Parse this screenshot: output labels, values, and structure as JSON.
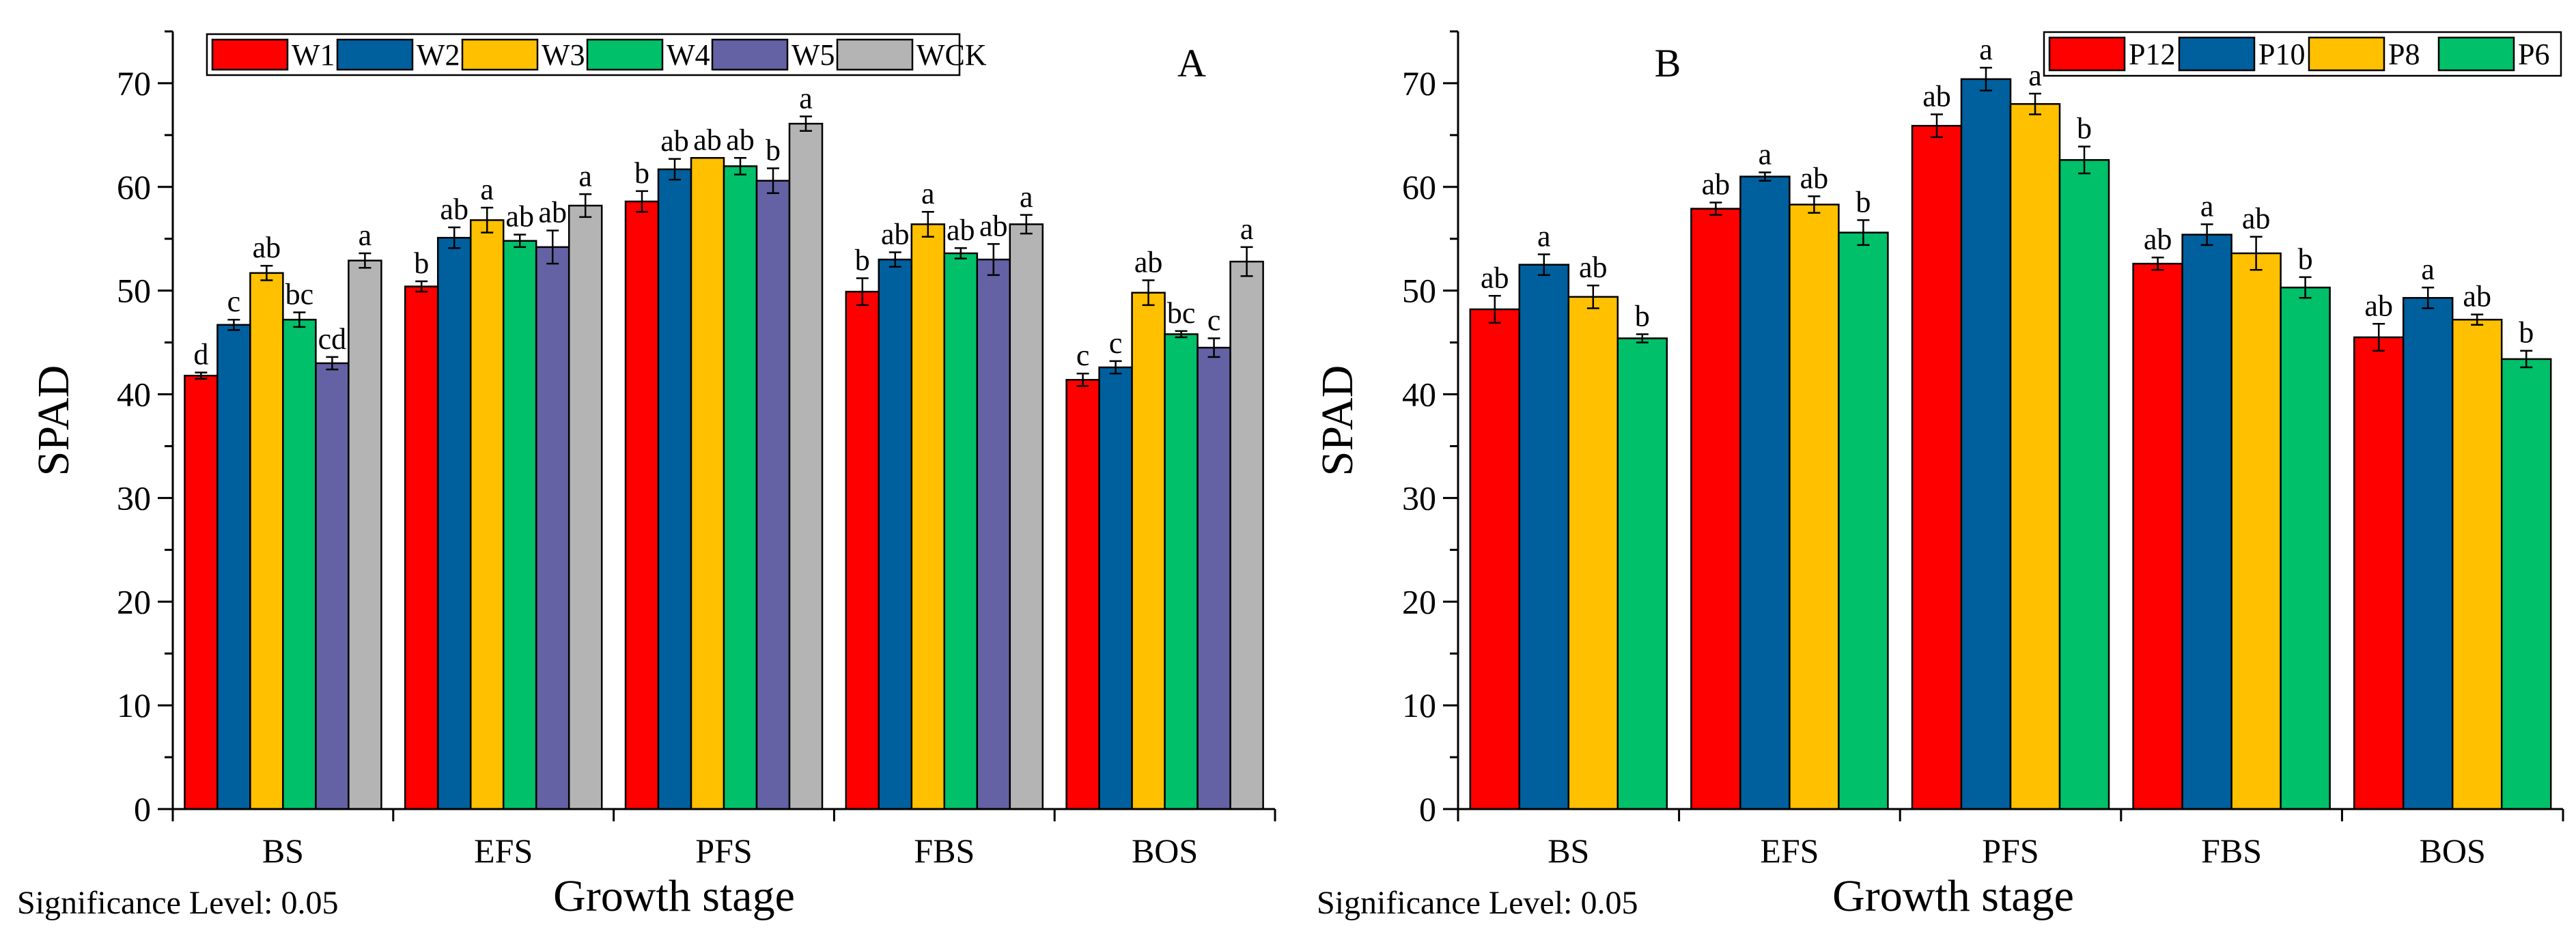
{
  "significance_note": "Significance Level: 0.05",
  "chart_data": [
    {
      "panel": "A",
      "type": "bar",
      "xlabel": "Growth stage",
      "ylabel": "SPAD",
      "ylim": [
        0,
        75
      ],
      "yticks": [
        0,
        10,
        20,
        30,
        40,
        50,
        60,
        70
      ],
      "categories": [
        "BS",
        "EFS",
        "PFS",
        "FBS",
        "BOS"
      ],
      "legend_position": "top-left",
      "grid": false,
      "series": [
        {
          "name": "W1",
          "color": "#ff0000",
          "values": [
            41.8,
            50.4,
            58.6,
            49.9,
            41.4
          ],
          "errors": [
            0.3,
            0.5,
            1.0,
            1.3,
            0.6
          ],
          "letters": [
            "d",
            "b",
            "b",
            "b",
            "c"
          ]
        },
        {
          "name": "W2",
          "color": "#00609e",
          "values": [
            46.7,
            55.1,
            61.7,
            53.0,
            42.6
          ],
          "errors": [
            0.5,
            1.0,
            1.0,
            0.7,
            0.6
          ],
          "letters": [
            "c",
            "ab",
            "ab",
            "ab",
            "c"
          ]
        },
        {
          "name": "W3",
          "color": "#ffc000",
          "values": [
            51.7,
            56.8,
            62.8,
            56.4,
            49.8
          ],
          "errors": [
            0.7,
            1.2,
            0.0,
            1.2,
            1.2
          ],
          "letters": [
            "ab",
            "a",
            "ab",
            "a",
            "ab"
          ]
        },
        {
          "name": "W4",
          "color": "#00c06a",
          "values": [
            47.2,
            54.8,
            62.0,
            53.6,
            45.8
          ],
          "errors": [
            0.7,
            0.6,
            0.8,
            0.5,
            0.3
          ],
          "letters": [
            "bc",
            "ab",
            "ab",
            "ab",
            "bc"
          ]
        },
        {
          "name": "W5",
          "color": "#6462a4",
          "values": [
            43.0,
            54.2,
            60.6,
            53.0,
            44.5
          ],
          "errors": [
            0.6,
            1.6,
            1.2,
            1.5,
            0.9
          ],
          "letters": [
            "cd",
            "ab",
            "b",
            "ab",
            "c"
          ]
        },
        {
          "name": "WCK",
          "color": "#b4b4b4",
          "values": [
            52.9,
            58.2,
            66.1,
            56.4,
            52.8
          ],
          "errors": [
            0.7,
            1.1,
            0.7,
            0.9,
            1.4
          ],
          "letters": [
            "a",
            "a",
            "a",
            "a",
            "a"
          ]
        }
      ]
    },
    {
      "panel": "B",
      "type": "bar",
      "xlabel": "Growth stage",
      "ylabel": "SPAD",
      "ylim": [
        0,
        75
      ],
      "yticks": [
        0,
        10,
        20,
        30,
        40,
        50,
        60,
        70
      ],
      "categories": [
        "BS",
        "EFS",
        "PFS",
        "FBS",
        "BOS"
      ],
      "legend_position": "top-right",
      "grid": false,
      "series": [
        {
          "name": "P12",
          "color": "#ff0000",
          "values": [
            48.2,
            57.9,
            65.9,
            52.6,
            45.5
          ],
          "errors": [
            1.3,
            0.6,
            1.1,
            0.6,
            1.3
          ],
          "letters": [
            "ab",
            "ab",
            "ab",
            "ab",
            "ab"
          ]
        },
        {
          "name": "P10",
          "color": "#00609e",
          "values": [
            52.5,
            61.0,
            70.4,
            55.4,
            49.3
          ],
          "errors": [
            1.0,
            0.4,
            1.1,
            1.0,
            1.0
          ],
          "letters": [
            "a",
            "a",
            "a",
            "a",
            "a"
          ]
        },
        {
          "name": "P8",
          "color": "#ffc000",
          "values": [
            49.4,
            58.3,
            68.0,
            53.6,
            47.2
          ],
          "errors": [
            1.1,
            0.8,
            1.0,
            1.6,
            0.5
          ],
          "letters": [
            "ab",
            "ab",
            "a",
            "ab",
            "ab"
          ]
        },
        {
          "name": "P6",
          "color": "#00c06a",
          "values": [
            45.4,
            55.6,
            62.6,
            50.3,
            43.4
          ],
          "errors": [
            0.4,
            1.2,
            1.3,
            1.0,
            0.8
          ],
          "letters": [
            "b",
            "b",
            "b",
            "b",
            "b"
          ]
        }
      ]
    }
  ]
}
